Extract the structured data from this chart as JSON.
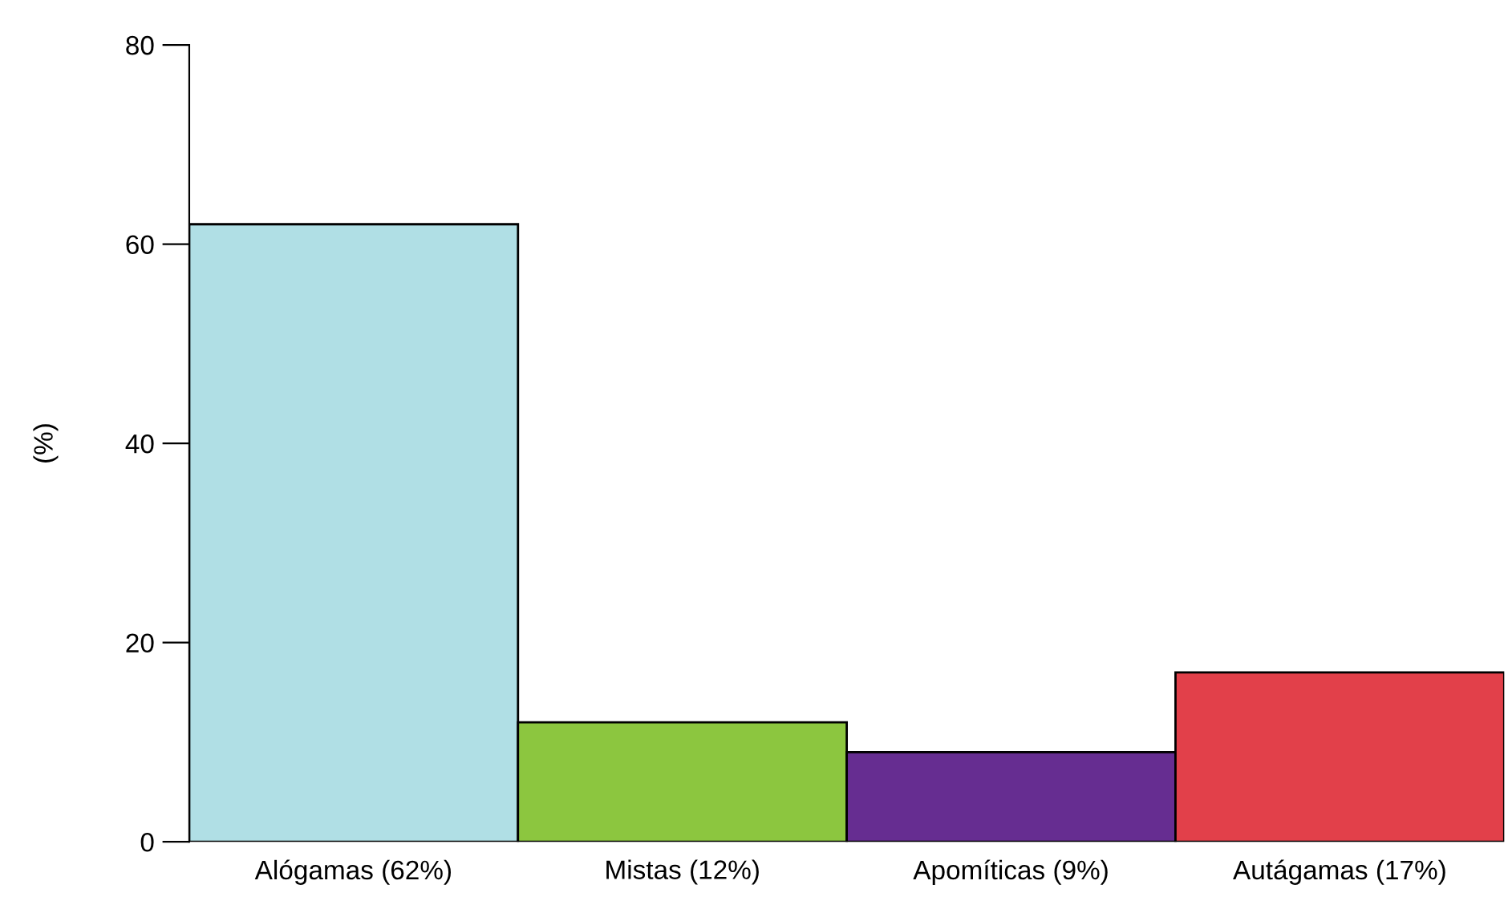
{
  "chart_data": {
    "type": "bar",
    "ylabel": "(%)",
    "categories": [
      "Alógamas (62%)",
      "Mistas (12%)",
      "Apomíticas (9%)",
      "Autágamas (17%)"
    ],
    "values": [
      62,
      12,
      9,
      17
    ],
    "colors": [
      "#b0dfe5",
      "#8cc63f",
      "#662d91",
      "#e2404a"
    ],
    "ylim": [
      0,
      80
    ],
    "yticks": [
      0,
      20,
      40,
      60,
      80
    ],
    "grid": false,
    "legend": false
  }
}
